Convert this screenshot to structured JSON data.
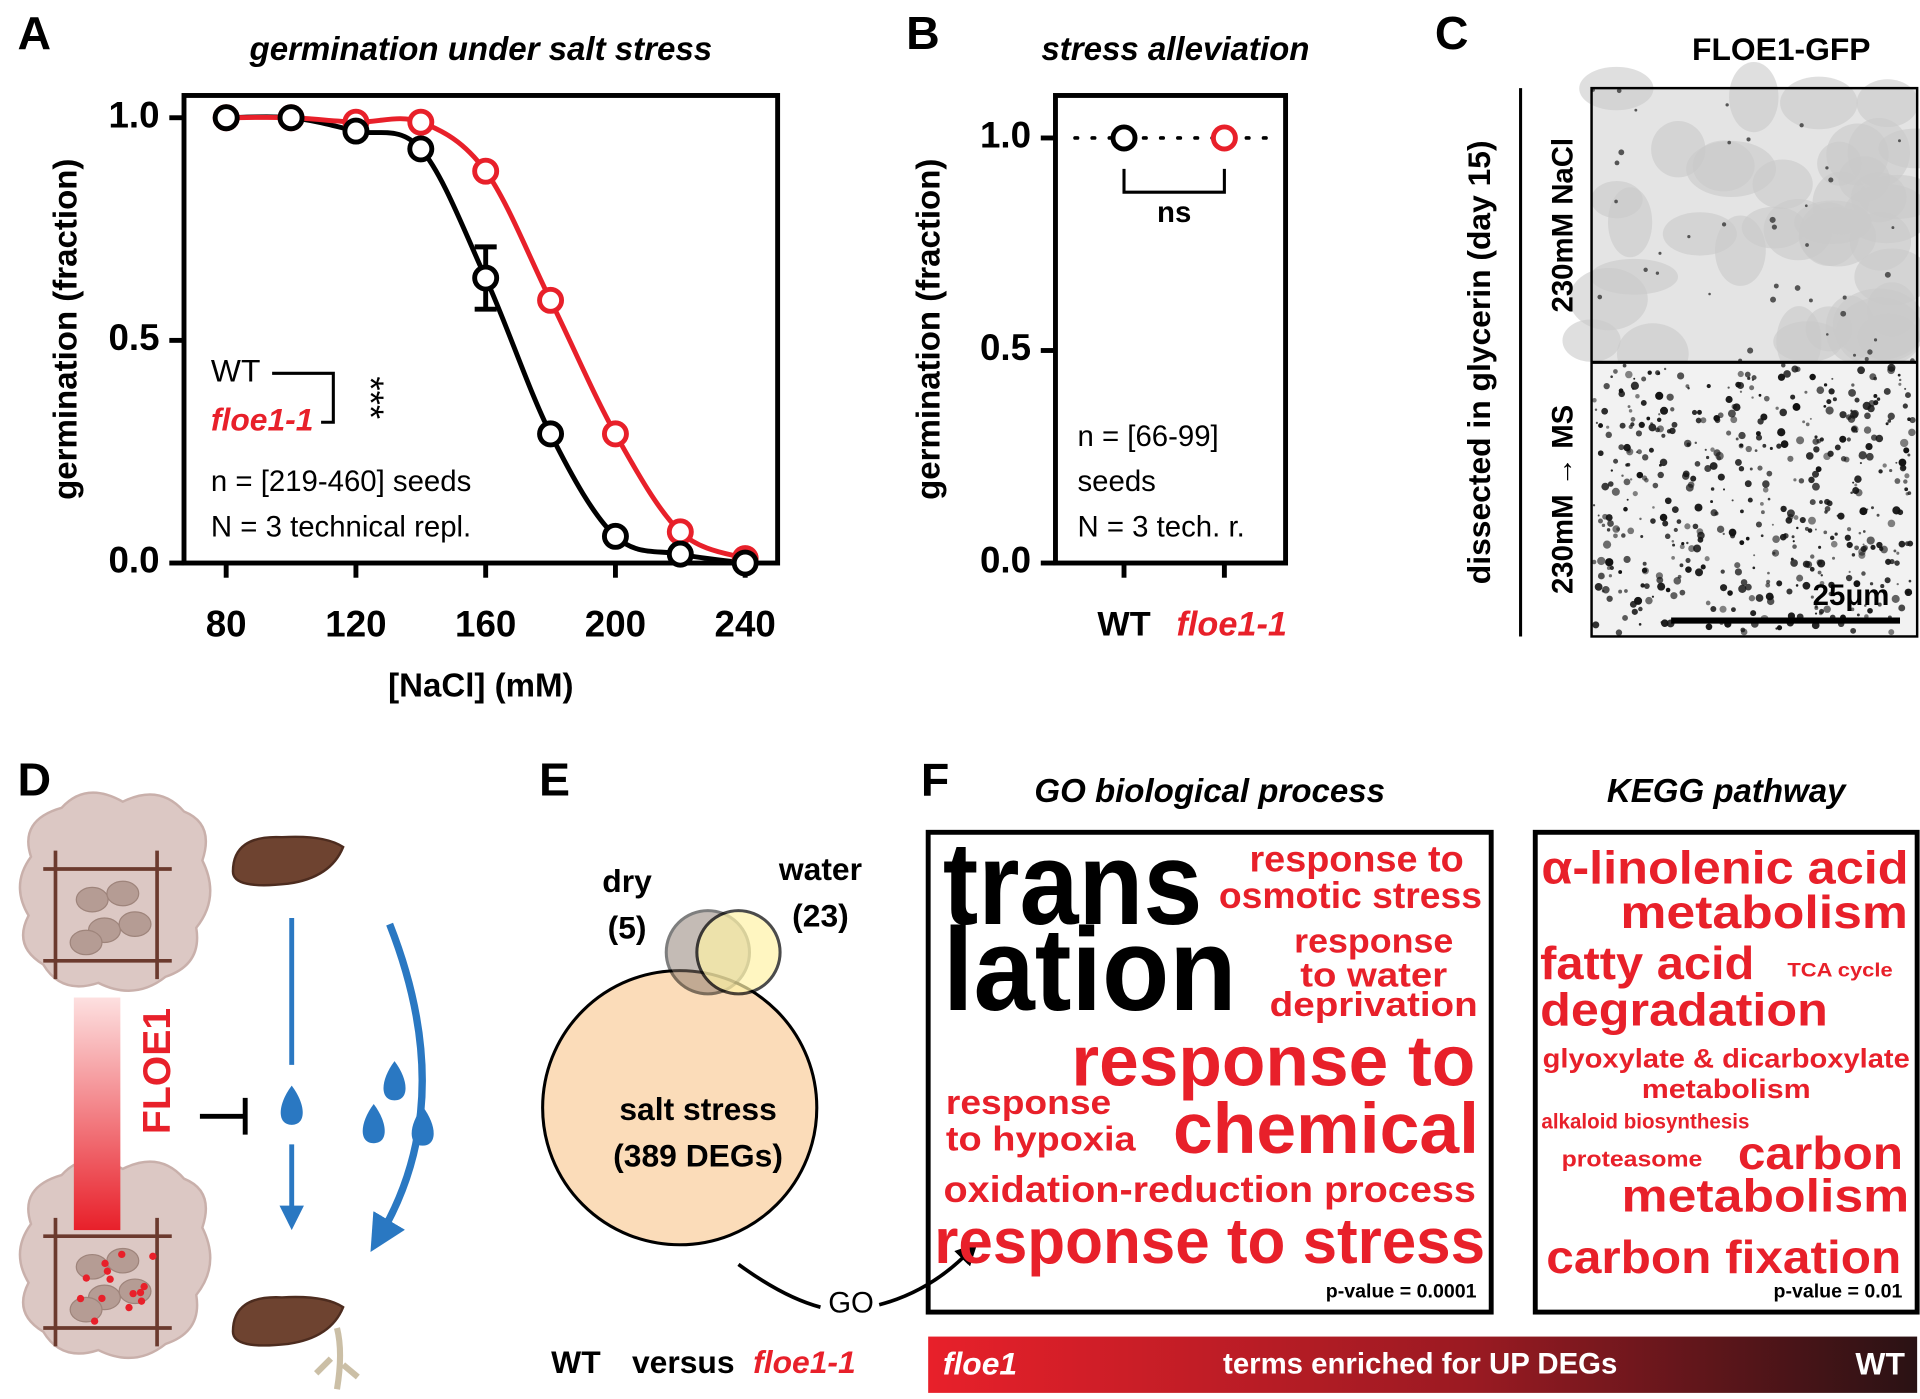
{
  "panels": [
    "A",
    "B",
    "C",
    "D",
    "E",
    "F"
  ],
  "chart_data": [
    {
      "type": "line",
      "title": "germination under salt stress",
      "x_label": "[NaCl] (mM)",
      "y_label": "germination (fraction)",
      "x": [
        80,
        100,
        120,
        140,
        160,
        180,
        200,
        220,
        240
      ],
      "series": [
        {
          "name": "WT",
          "color": "#000000",
          "values": [
            1.0,
            1.0,
            0.97,
            0.93,
            0.64,
            0.29,
            0.06,
            0.02,
            0.0
          ],
          "errors": [
            null,
            null,
            null,
            null,
            0.07,
            null,
            null,
            null,
            null
          ]
        },
        {
          "name": "floe1-1",
          "color": "#e8202a",
          "values": [
            1.0,
            1.0,
            0.99,
            0.99,
            0.88,
            0.59,
            0.29,
            0.07,
            0.01
          ]
        }
      ],
      "xlim": [
        67,
        250
      ],
      "ylim": [
        0,
        1.05
      ],
      "xticks": [
        80,
        120,
        160,
        200,
        240
      ],
      "yticks": [
        {
          "value": 0,
          "label": "0.0"
        },
        {
          "value": 0.5,
          "label": "0.5"
        },
        {
          "value": 1,
          "label": "1.0"
        }
      ],
      "significance": "***",
      "annotation": [
        "n = [219-460] seeds",
        "N = 3 technical repl."
      ]
    },
    {
      "type": "dot",
      "title": "stress alleviation",
      "y_label": "germination (fraction)",
      "categories": [
        "WT",
        "floe1-1"
      ],
      "category_colors": [
        "#000000",
        "#e8202a"
      ],
      "values": [
        1.0,
        1.0
      ],
      "ylim": [
        0,
        1.1
      ],
      "yticks": [
        {
          "value": 0,
          "label": "0.0"
        },
        {
          "value": 0.5,
          "label": "0.5"
        },
        {
          "value": 1,
          "label": "1.0"
        }
      ],
      "reference_line": 1.0,
      "comparison": "ns",
      "annotation": [
        "n = [66-99]",
        "seeds",
        "N = 3 tech. r."
      ]
    }
  ],
  "image_panel": {
    "title": "FLOE1-GFP",
    "side_label": "dissected in glycerin (day 15)",
    "rows": [
      "230mM NaCl",
      "230mM → MS"
    ],
    "scale_bar": "25μm"
  },
  "diagram": {
    "label": "FLOE1"
  },
  "venn": {
    "sets": [
      {
        "name": "dry",
        "count": "(5)"
      },
      {
        "name": "water",
        "count": "(23)"
      }
    ],
    "main": "salt stress",
    "main_count": "(389 DEGs)",
    "arrow_label": "GO",
    "comparison": [
      "WT",
      "versus",
      "floe1-1"
    ]
  },
  "word_clouds": [
    {
      "title": "GO biological process",
      "p_value": "p-value = 0.0001",
      "terms": [
        {
          "lines": [
            "trans",
            "lation"
          ],
          "color": "#000000"
        },
        {
          "lines": [
            "response to",
            "osmotic stress"
          ],
          "color": "#e8202a"
        },
        {
          "lines": [
            "response",
            "to water",
            "deprivation"
          ],
          "color": "#e8202a"
        },
        {
          "lines": [
            "response to",
            "chemical"
          ],
          "color": "#e8202a"
        },
        {
          "lines": [
            "response",
            "to hypoxia"
          ],
          "color": "#e8202a"
        },
        {
          "lines": [
            "oxidation-reduction process"
          ],
          "color": "#e8202a"
        },
        {
          "lines": [
            "response to stress"
          ],
          "color": "#e8202a"
        }
      ]
    },
    {
      "title": "KEGG pathway",
      "p_value": "p-value = 0.01",
      "terms": [
        {
          "lines": [
            "α-linolenic acid",
            "metabolism"
          ],
          "color": "#e8202a"
        },
        {
          "lines": [
            "fatty acid",
            "degradation"
          ],
          "color": "#e8202a"
        },
        {
          "lines": [
            "TCA cycle"
          ],
          "color": "#e8202a"
        },
        {
          "lines": [
            "glyoxylate & dicarboxylate",
            "metabolism"
          ],
          "color": "#e8202a"
        },
        {
          "lines": [
            "alkaloid biosynthesis"
          ],
          "color": "#e8202a"
        },
        {
          "lines": [
            "proteasome"
          ],
          "color": "#e8202a"
        },
        {
          "lines": [
            "carbon",
            "metabolism"
          ],
          "color": "#e8202a"
        },
        {
          "lines": [
            "carbon fixation"
          ],
          "color": "#e8202a"
        }
      ]
    }
  ],
  "gradient_bar": {
    "left": "floe1",
    "center": "terms enriched for UP DEGs",
    "right": "WT"
  }
}
